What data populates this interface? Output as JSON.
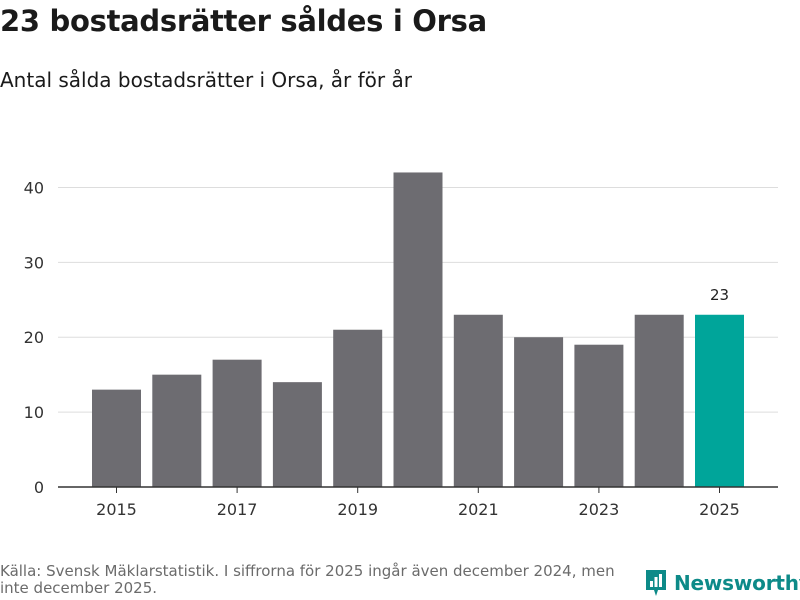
{
  "header": {
    "title": "23 bostadsrätter såldes i Orsa",
    "subtitle": "Antal sålda bostadsrätter i Orsa, år för år"
  },
  "footer": {
    "source": "Källa: Svensk Mäklarstatistik. I siffrorna för 2025 ingår även december 2024, men inte december 2025.",
    "brand": "Newsworthy"
  },
  "colors": {
    "bar": "#6d6c71",
    "highlight": "#00a59a",
    "grid": "#dddddd",
    "axis": "#333333",
    "brand": "#0d8a88"
  },
  "chart_data": {
    "type": "bar",
    "title": "23 bostadsrätter såldes i Orsa",
    "subtitle": "Antal sålda bostadsrätter i Orsa, år för år",
    "categories": [
      "2015",
      "2016",
      "2017",
      "2018",
      "2019",
      "2020",
      "2021",
      "2022",
      "2023",
      "2024",
      "2025"
    ],
    "values": [
      13,
      15,
      17,
      14,
      21,
      42,
      23,
      20,
      19,
      23,
      23
    ],
    "x_tick_labels": [
      "2015",
      "2017",
      "2019",
      "2021",
      "2023",
      "2025"
    ],
    "y_ticks": [
      0,
      10,
      20,
      30,
      40
    ],
    "ylim": [
      0,
      45
    ],
    "xlabel": "",
    "ylabel": "",
    "highlight_category": "2025",
    "data_labels": [
      {
        "category": "2025",
        "text": "23"
      }
    ],
    "grid": true
  }
}
